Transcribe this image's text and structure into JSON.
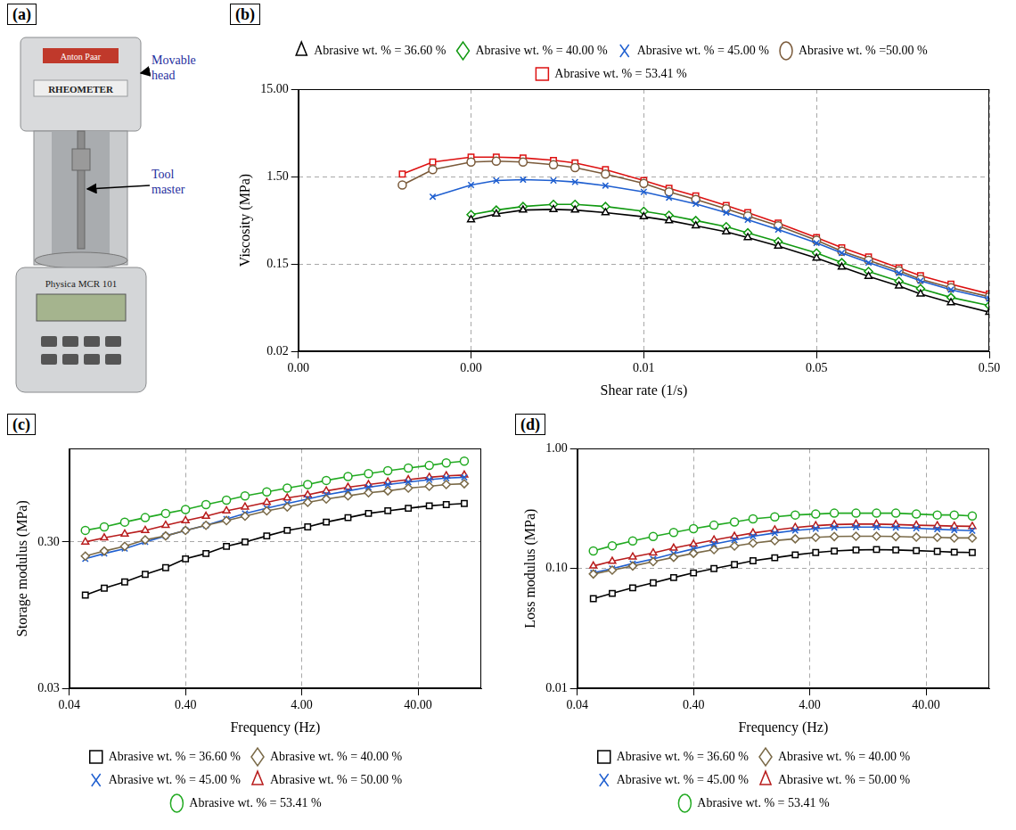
{
  "panel_a": {
    "title": "(a)",
    "device_texts": [
      "Anton Paar",
      "RHEOMETER",
      "Physica MCR 101"
    ],
    "annotations": [
      "Movable head",
      "Tool master"
    ]
  },
  "chart_data": [
    {
      "type": "line",
      "title": "(b)",
      "xlabel": "Shear rate (1/s)",
      "ylabel": "Viscosity (MPa)",
      "log": true,
      "grid": true,
      "legend": "top",
      "xlim": [
        5e-05,
        0.5
      ],
      "xticks": [
        {
          "value": 5e-05,
          "label": "0.00"
        },
        {
          "value": 0.0005,
          "label": "0.00"
        },
        {
          "value": 0.005,
          "label": "0.01"
        },
        0.05,
        {
          "value": 0.5,
          "label": "0.50"
        }
      ],
      "ylim": [
        0.015,
        15
      ],
      "yticks": [
        {
          "value": 0.015,
          "label": "0.02"
        },
        0.15,
        {
          "value": 1.5,
          "label": "1.50"
        },
        {
          "value": 15,
          "label": "15.00"
        }
      ],
      "x": [
        0.0002,
        0.0003,
        0.0005,
        0.0007,
        0.001,
        0.0015,
        0.002,
        0.003,
        0.005,
        0.007,
        0.01,
        0.015,
        0.02,
        0.03,
        0.05,
        0.07,
        0.1,
        0.15,
        0.2,
        0.3,
        0.5
      ],
      "series": [
        {
          "name": "Abrasive wt. % = 36.60 %",
          "color": "#000000",
          "marker": "triangle",
          "values": [
            null,
            null,
            0.48,
            0.56,
            0.62,
            0.63,
            0.62,
            0.58,
            0.52,
            0.47,
            0.41,
            0.35,
            0.3,
            0.24,
            0.175,
            0.138,
            0.108,
            0.084,
            0.068,
            0.054,
            0.042
          ]
        },
        {
          "name": "Abrasive wt. % = 40.00 %",
          "color": "#119911",
          "marker": "diamond",
          "values": [
            null,
            null,
            0.55,
            0.62,
            0.68,
            0.72,
            0.72,
            0.68,
            0.6,
            0.54,
            0.47,
            0.4,
            0.34,
            0.27,
            0.2,
            0.155,
            0.123,
            0.095,
            0.078,
            0.062,
            0.05
          ]
        },
        {
          "name": "Abrasive wt. % = 45.00 %",
          "color": "#1f5fd0",
          "marker": "x",
          "values": [
            null,
            0.88,
            1.2,
            1.35,
            1.38,
            1.35,
            1.3,
            1.18,
            1.0,
            0.86,
            0.73,
            0.58,
            0.48,
            0.37,
            0.26,
            0.2,
            0.155,
            0.118,
            0.096,
            0.076,
            0.06
          ]
        },
        {
          "name": "Abrasive wt. % =50.00 %",
          "color": "#7a5a3a",
          "marker": "circle",
          "values": [
            1.2,
            1.8,
            2.2,
            2.25,
            2.2,
            2.05,
            1.9,
            1.6,
            1.25,
            1.0,
            0.82,
            0.64,
            0.53,
            0.41,
            0.28,
            0.21,
            0.165,
            0.125,
            0.1,
            0.08,
            0.063
          ]
        },
        {
          "name": "Abrasive wt. % = 53.41 %",
          "color": "#dd1111",
          "marker": "square",
          "values": [
            1.6,
            2.2,
            2.5,
            2.5,
            2.45,
            2.3,
            2.15,
            1.8,
            1.35,
            1.1,
            0.9,
            0.7,
            0.58,
            0.44,
            0.3,
            0.23,
            0.18,
            0.135,
            0.11,
            0.088,
            0.068
          ]
        }
      ]
    },
    {
      "type": "line",
      "title": "(c)",
      "xlabel": "Frequency (Hz)",
      "ylabel": "Storage modulus (MPa)",
      "log": true,
      "grid": true,
      "legend": "bottom",
      "xlim": [
        0.04,
        140
      ],
      "xticks": [
        0.04,
        {
          "value": 0.4,
          "label": "0.40"
        },
        {
          "value": 4,
          "label": "4.00"
        },
        {
          "value": 40,
          "label": "40.00"
        }
      ],
      "ylim": [
        0.03,
        1.3
      ],
      "yticks": [
        0.03,
        {
          "value": 0.3,
          "label": "0.30"
        }
      ],
      "x": [
        0.055,
        0.08,
        0.12,
        0.18,
        0.27,
        0.4,
        0.6,
        0.9,
        1.3,
        2,
        3,
        4.5,
        6.5,
        10,
        15,
        22,
        33,
        50,
        70,
        100
      ],
      "series": [
        {
          "name": "Abrasive wt. % = 36.60 %",
          "color": "#000000",
          "marker": "square",
          "values": [
            0.13,
            0.145,
            0.16,
            0.18,
            0.2,
            0.23,
            0.25,
            0.28,
            0.3,
            0.33,
            0.36,
            0.38,
            0.41,
            0.44,
            0.47,
            0.49,
            0.51,
            0.53,
            0.54,
            0.55
          ]
        },
        {
          "name": "Abrasive wt. % = 40.00 %",
          "color": "#7a6a48",
          "marker": "diamond",
          "values": [
            0.24,
            0.26,
            0.28,
            0.31,
            0.33,
            0.36,
            0.39,
            0.42,
            0.45,
            0.49,
            0.52,
            0.56,
            0.59,
            0.62,
            0.65,
            0.67,
            0.7,
            0.72,
            0.74,
            0.75
          ]
        },
        {
          "name": "Abrasive wt. % = 45.00 %",
          "color": "#1f5fd0",
          "marker": "x",
          "values": [
            0.23,
            0.25,
            0.27,
            0.3,
            0.33,
            0.36,
            0.39,
            0.43,
            0.47,
            0.51,
            0.55,
            0.59,
            0.63,
            0.67,
            0.71,
            0.74,
            0.77,
            0.8,
            0.82,
            0.83
          ]
        },
        {
          "name": "Abrasive wt. % = 50.00 %",
          "color": "#b81c1c",
          "marker": "triangle",
          "values": [
            0.3,
            0.32,
            0.34,
            0.36,
            0.39,
            0.42,
            0.45,
            0.49,
            0.52,
            0.56,
            0.6,
            0.63,
            0.67,
            0.71,
            0.74,
            0.77,
            0.8,
            0.83,
            0.85,
            0.86
          ]
        },
        {
          "name": "Abrasive wt. % = 53.41 %",
          "color": "#22aa22",
          "marker": "circle",
          "values": [
            0.36,
            0.38,
            0.41,
            0.44,
            0.47,
            0.5,
            0.54,
            0.58,
            0.62,
            0.66,
            0.7,
            0.74,
            0.79,
            0.84,
            0.88,
            0.92,
            0.96,
            1.0,
            1.04,
            1.07
          ]
        }
      ]
    },
    {
      "type": "line",
      "title": "(d)",
      "xlabel": "Frequency (Hz)",
      "ylabel": "Loss modulus (MPa)",
      "log": true,
      "grid": true,
      "legend": "bottom",
      "xlim": [
        0.04,
        140
      ],
      "xticks": [
        0.04,
        {
          "value": 0.4,
          "label": "0.40"
        },
        {
          "value": 4,
          "label": "4.00"
        },
        {
          "value": 40,
          "label": "40.00"
        }
      ],
      "ylim": [
        0.01,
        1
      ],
      "yticks": [
        0.01,
        {
          "value": 0.1,
          "label": "0.10"
        },
        {
          "value": 1,
          "label": "1.00"
        }
      ],
      "x": [
        0.055,
        0.08,
        0.12,
        0.18,
        0.27,
        0.4,
        0.6,
        0.9,
        1.3,
        2,
        3,
        4.5,
        6.5,
        10,
        15,
        22,
        33,
        50,
        70,
        100
      ],
      "series": [
        {
          "name": "Abrasive wt. % = 36.60 %",
          "color": "#000000",
          "marker": "square",
          "values": [
            0.056,
            0.062,
            0.069,
            0.076,
            0.084,
            0.092,
            0.1,
            0.108,
            0.116,
            0.123,
            0.13,
            0.136,
            0.14,
            0.143,
            0.144,
            0.143,
            0.141,
            0.139,
            0.137,
            0.136
          ]
        },
        {
          "name": "Abrasive wt. % = 40.00 %",
          "color": "#7a6a48",
          "marker": "diamond",
          "values": [
            0.09,
            0.097,
            0.105,
            0.114,
            0.124,
            0.134,
            0.144,
            0.154,
            0.163,
            0.171,
            0.177,
            0.182,
            0.185,
            0.186,
            0.186,
            0.185,
            0.183,
            0.182,
            0.18,
            0.18
          ]
        },
        {
          "name": "Abrasive wt. % = 45.00 %",
          "color": "#1f5fd0",
          "marker": "x",
          "values": [
            0.092,
            0.1,
            0.11,
            0.12,
            0.133,
            0.146,
            0.16,
            0.173,
            0.186,
            0.198,
            0.208,
            0.215,
            0.22,
            0.222,
            0.222,
            0.22,
            0.217,
            0.213,
            0.21,
            0.207
          ]
        },
        {
          "name": "Abrasive wt. % = 50.00 %",
          "color": "#b81c1c",
          "marker": "triangle",
          "values": [
            0.105,
            0.115,
            0.125,
            0.135,
            0.148,
            0.16,
            0.173,
            0.186,
            0.198,
            0.21,
            0.22,
            0.228,
            0.233,
            0.235,
            0.235,
            0.233,
            0.23,
            0.228,
            0.226,
            0.225
          ]
        },
        {
          "name": "Abrasive wt. % = 53.41 %",
          "color": "#22aa22",
          "marker": "circle",
          "values": [
            0.14,
            0.155,
            0.17,
            0.185,
            0.2,
            0.215,
            0.23,
            0.245,
            0.26,
            0.27,
            0.28,
            0.285,
            0.29,
            0.29,
            0.29,
            0.29,
            0.285,
            0.28,
            0.28,
            0.275
          ]
        }
      ]
    }
  ]
}
